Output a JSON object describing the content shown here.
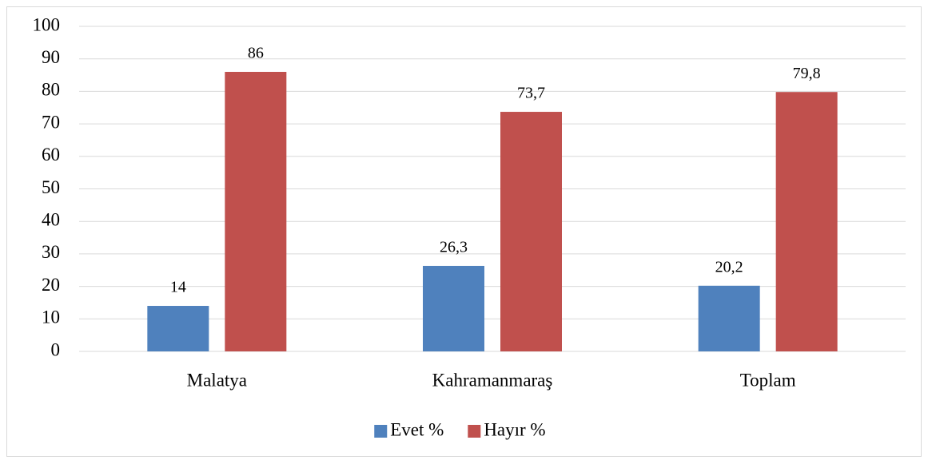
{
  "chart_data": {
    "type": "bar",
    "categories": [
      "Malatya",
      "Kahramanmaraş",
      "Toplam"
    ],
    "series": [
      {
        "name": "Evet %",
        "color": "#4f81bd",
        "values": [
          14,
          26.3,
          20.2
        ],
        "value_labels": [
          "14",
          "26,3",
          "20,2"
        ]
      },
      {
        "name": "Hayır %",
        "color": "#c0504d",
        "values": [
          86,
          73.7,
          79.8
        ],
        "value_labels": [
          "86",
          "73,7",
          "79,8"
        ]
      }
    ],
    "ylim": [
      0,
      100
    ],
    "yticks": [
      0,
      10,
      20,
      30,
      40,
      50,
      60,
      70,
      80,
      90,
      100
    ],
    "grid": true,
    "legend": "bottom"
  }
}
